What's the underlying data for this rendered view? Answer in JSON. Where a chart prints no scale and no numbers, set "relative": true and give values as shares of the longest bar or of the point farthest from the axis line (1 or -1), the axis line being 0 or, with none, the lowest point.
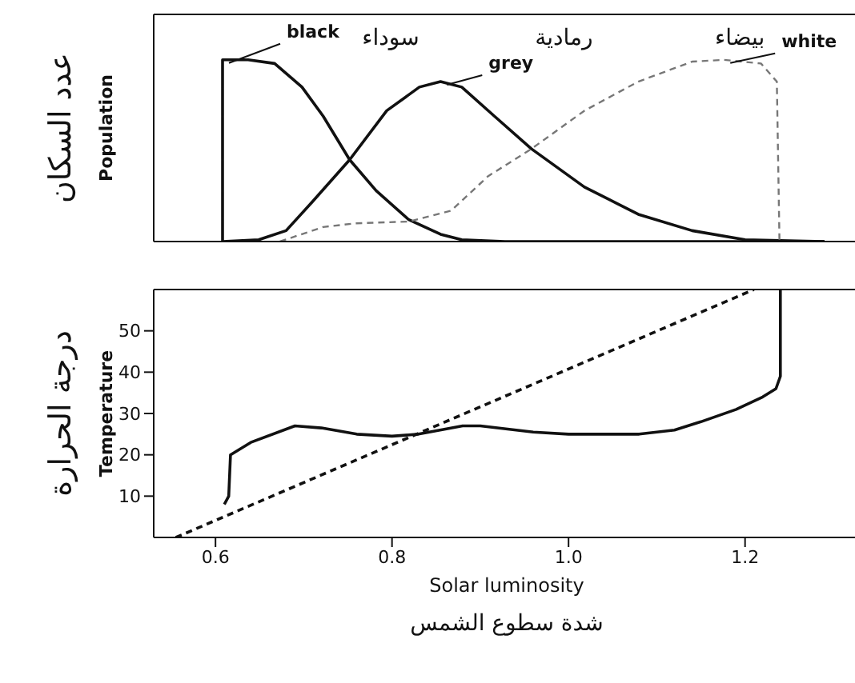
{
  "chart_data": [
    {
      "type": "line",
      "relative": true,
      "ylabel": "عدد السكان\nPopulation",
      "xlim": [
        0.53,
        1.33
      ],
      "series": [
        {
          "name": "black",
          "color": "#111111",
          "line_style": "solid",
          "x": [
            0.608,
            0.608,
            0.637,
            0.667,
            0.698,
            0.722,
            0.752,
            0.782,
            0.819,
            0.855,
            0.879,
            0.928,
            1.29
          ],
          "values": [
            0,
            1.0,
            1.0,
            0.98,
            0.85,
            0.69,
            0.45,
            0.28,
            0.12,
            0.04,
            0.01,
            0,
            0
          ]
        },
        {
          "name": "grey",
          "color": "#111111",
          "line_style": "solid",
          "x": [
            0.608,
            0.649,
            0.68,
            0.71,
            0.752,
            0.794,
            0.831,
            0.855,
            0.879,
            0.916,
            0.958,
            1.018,
            1.079,
            1.14,
            1.2,
            1.29
          ],
          "values": [
            0,
            0.01,
            0.06,
            0.22,
            0.45,
            0.72,
            0.85,
            0.88,
            0.85,
            0.69,
            0.51,
            0.3,
            0.15,
            0.06,
            0.01,
            0
          ]
        },
        {
          "name": "white",
          "color": "#777777",
          "line_style": "dashed",
          "x": [
            0.673,
            0.722,
            0.758,
            0.819,
            0.867,
            0.909,
            0.958,
            1.018,
            1.079,
            1.14,
            1.176,
            1.218,
            1.236,
            1.239
          ],
          "values": [
            0,
            0.08,
            0.1,
            0.11,
            0.17,
            0.36,
            0.51,
            0.72,
            0.88,
            0.99,
            1.0,
            0.98,
            0.88,
            0
          ]
        }
      ],
      "annotations": [
        "سوداء",
        "رمادية",
        "بيضاء"
      ]
    },
    {
      "type": "line",
      "ylabel": "درجة الحرارة\nTemperature",
      "xlabel": "Solar luminosity\nشدة سطوع الشمس",
      "xlim": [
        0.53,
        1.33
      ],
      "ylim": [
        0,
        60
      ],
      "xticks": [
        {
          "value": 0.6,
          "label": "0.6"
        },
        {
          "value": 0.8,
          "label": "0.8"
        },
        {
          "value": 1.0,
          "label": "1.0"
        },
        {
          "value": 1.2,
          "label": "1.2"
        }
      ],
      "yticks": [
        10,
        20,
        30,
        40,
        50
      ],
      "series": [
        {
          "color": "#111111",
          "line_style": "solid",
          "x": [
            0.61,
            0.615,
            0.617,
            0.64,
            0.69,
            0.72,
            0.76,
            0.8,
            0.83,
            0.88,
            0.9,
            0.96,
            1.0,
            1.08,
            1.12,
            1.15,
            1.19,
            1.22,
            1.235,
            1.24,
            1.24
          ],
          "values": [
            8,
            10,
            20,
            23,
            27,
            26.5,
            25,
            24.5,
            25,
            27,
            27,
            25.5,
            25,
            25,
            26,
            28,
            31,
            34,
            36,
            39,
            60
          ]
        },
        {
          "color": "#111111",
          "line_style": "dashed",
          "x": [
            0.555,
            1.21
          ],
          "values": [
            0,
            60
          ]
        }
      ]
    }
  ]
}
